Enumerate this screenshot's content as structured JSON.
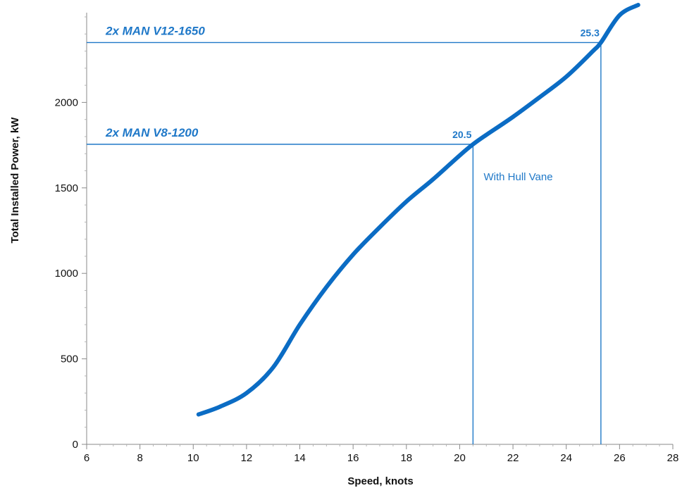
{
  "chart_data": {
    "type": "line",
    "xlabel": "Speed, knots",
    "ylabel": "Total Installed Power, kW",
    "xlim": [
      6,
      28
    ],
    "ylim": [
      0,
      2500
    ],
    "x_ticks": [
      6,
      8,
      10,
      12,
      14,
      16,
      18,
      20,
      22,
      24,
      26,
      28
    ],
    "y_ticks": [
      0,
      500,
      1000,
      1500,
      2000
    ],
    "grid": false,
    "series": [
      {
        "color": "#0b6cc4",
        "x": [
          10.2,
          11.0,
          12.0,
          13.0,
          14.0,
          15.0,
          16.0,
          17.0,
          18.0,
          19.0,
          20.0,
          20.5,
          21.0,
          22.0,
          23.0,
          24.0,
          25.0,
          25.3,
          26.0,
          26.7
        ],
        "y": [
          175,
          220,
          300,
          450,
          700,
          920,
          1110,
          1270,
          1420,
          1550,
          1690,
          1755,
          1810,
          1915,
          2030,
          2150,
          2300,
          2350,
          2510,
          2570
        ]
      }
    ],
    "reference_lines": [
      {
        "label": "2x MAN V12-1650",
        "power": 2350,
        "speed": 25.3,
        "speed_label": "25.3"
      },
      {
        "label": "2x MAN V8-1200",
        "power": 1755,
        "speed": 20.5,
        "speed_label": "20.5"
      }
    ],
    "annotations": [
      {
        "text": "With Hull Vane",
        "x": 20.9,
        "y": 1545
      }
    ],
    "line_color": "#1f78c8"
  }
}
